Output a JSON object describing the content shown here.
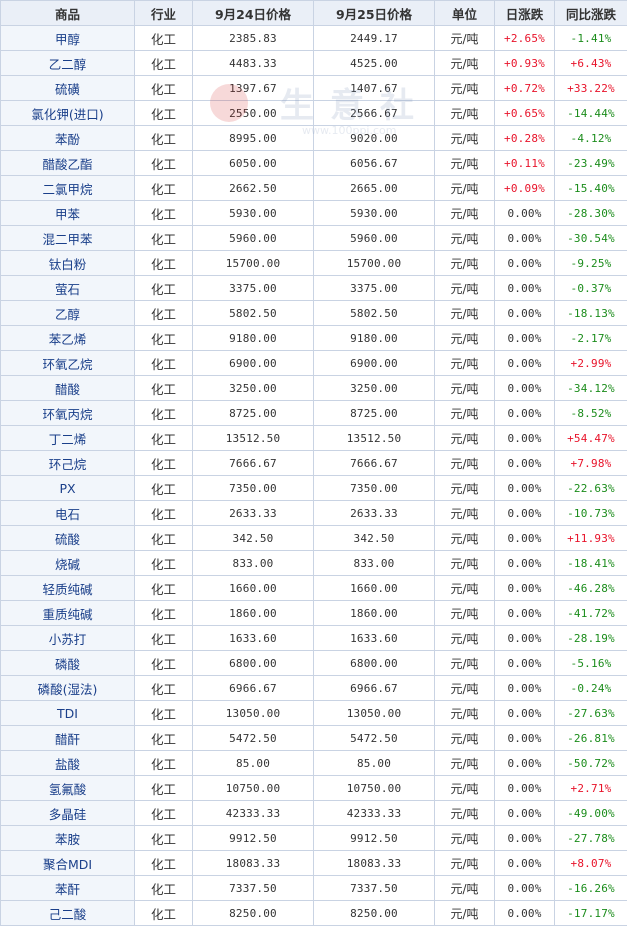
{
  "table": {
    "headers": [
      "商品",
      "行业",
      "9月24日价格",
      "9月25日价格",
      "单位",
      "日涨跌",
      "同比涨跌"
    ],
    "colors": {
      "up": "#e8132a",
      "down": "#1b8c1b",
      "neutral": "#333333"
    },
    "rows": [
      {
        "name": "甲醇",
        "industry": "化工",
        "p24": "2385.83",
        "p25": "2449.17",
        "unit": "元/吨",
        "day": "+2.65%",
        "yoy": "-1.41%"
      },
      {
        "name": "乙二醇",
        "industry": "化工",
        "p24": "4483.33",
        "p25": "4525.00",
        "unit": "元/吨",
        "day": "+0.93%",
        "yoy": "+6.43%"
      },
      {
        "name": "硫磺",
        "industry": "化工",
        "p24": "1397.67",
        "p25": "1407.67",
        "unit": "元/吨",
        "day": "+0.72%",
        "yoy": "+33.22%"
      },
      {
        "name": "氯化钾(进口)",
        "industry": "化工",
        "p24": "2550.00",
        "p25": "2566.67",
        "unit": "元/吨",
        "day": "+0.65%",
        "yoy": "-14.44%"
      },
      {
        "name": "苯酚",
        "industry": "化工",
        "p24": "8995.00",
        "p25": "9020.00",
        "unit": "元/吨",
        "day": "+0.28%",
        "yoy": "-4.12%"
      },
      {
        "name": "醋酸乙酯",
        "industry": "化工",
        "p24": "6050.00",
        "p25": "6056.67",
        "unit": "元/吨",
        "day": "+0.11%",
        "yoy": "-23.49%"
      },
      {
        "name": "二氯甲烷",
        "industry": "化工",
        "p24": "2662.50",
        "p25": "2665.00",
        "unit": "元/吨",
        "day": "+0.09%",
        "yoy": "-15.40%"
      },
      {
        "name": "甲苯",
        "industry": "化工",
        "p24": "5930.00",
        "p25": "5930.00",
        "unit": "元/吨",
        "day": "0.00%",
        "yoy": "-28.30%"
      },
      {
        "name": "混二甲苯",
        "industry": "化工",
        "p24": "5960.00",
        "p25": "5960.00",
        "unit": "元/吨",
        "day": "0.00%",
        "yoy": "-30.54%"
      },
      {
        "name": "钛白粉",
        "industry": "化工",
        "p24": "15700.00",
        "p25": "15700.00",
        "unit": "元/吨",
        "day": "0.00%",
        "yoy": "-9.25%"
      },
      {
        "name": "萤石",
        "industry": "化工",
        "p24": "3375.00",
        "p25": "3375.00",
        "unit": "元/吨",
        "day": "0.00%",
        "yoy": "-0.37%"
      },
      {
        "name": "乙醇",
        "industry": "化工",
        "p24": "5802.50",
        "p25": "5802.50",
        "unit": "元/吨",
        "day": "0.00%",
        "yoy": "-18.13%"
      },
      {
        "name": "苯乙烯",
        "industry": "化工",
        "p24": "9180.00",
        "p25": "9180.00",
        "unit": "元/吨",
        "day": "0.00%",
        "yoy": "-2.17%"
      },
      {
        "name": "环氧乙烷",
        "industry": "化工",
        "p24": "6900.00",
        "p25": "6900.00",
        "unit": "元/吨",
        "day": "0.00%",
        "yoy": "+2.99%"
      },
      {
        "name": "醋酸",
        "industry": "化工",
        "p24": "3250.00",
        "p25": "3250.00",
        "unit": "元/吨",
        "day": "0.00%",
        "yoy": "-34.12%"
      },
      {
        "name": "环氧丙烷",
        "industry": "化工",
        "p24": "8725.00",
        "p25": "8725.00",
        "unit": "元/吨",
        "day": "0.00%",
        "yoy": "-8.52%"
      },
      {
        "name": "丁二烯",
        "industry": "化工",
        "p24": "13512.50",
        "p25": "13512.50",
        "unit": "元/吨",
        "day": "0.00%",
        "yoy": "+54.47%"
      },
      {
        "name": "环己烷",
        "industry": "化工",
        "p24": "7666.67",
        "p25": "7666.67",
        "unit": "元/吨",
        "day": "0.00%",
        "yoy": "+7.98%"
      },
      {
        "name": "PX",
        "industry": "化工",
        "p24": "7350.00",
        "p25": "7350.00",
        "unit": "元/吨",
        "day": "0.00%",
        "yoy": "-22.63%"
      },
      {
        "name": "电石",
        "industry": "化工",
        "p24": "2633.33",
        "p25": "2633.33",
        "unit": "元/吨",
        "day": "0.00%",
        "yoy": "-10.73%"
      },
      {
        "name": "硫酸",
        "industry": "化工",
        "p24": "342.50",
        "p25": "342.50",
        "unit": "元/吨",
        "day": "0.00%",
        "yoy": "+11.93%"
      },
      {
        "name": "烧碱",
        "industry": "化工",
        "p24": "833.00",
        "p25": "833.00",
        "unit": "元/吨",
        "day": "0.00%",
        "yoy": "-18.41%"
      },
      {
        "name": "轻质纯碱",
        "industry": "化工",
        "p24": "1660.00",
        "p25": "1660.00",
        "unit": "元/吨",
        "day": "0.00%",
        "yoy": "-46.28%"
      },
      {
        "name": "重质纯碱",
        "industry": "化工",
        "p24": "1860.00",
        "p25": "1860.00",
        "unit": "元/吨",
        "day": "0.00%",
        "yoy": "-41.72%"
      },
      {
        "name": "小苏打",
        "industry": "化工",
        "p24": "1633.60",
        "p25": "1633.60",
        "unit": "元/吨",
        "day": "0.00%",
        "yoy": "-28.19%"
      },
      {
        "name": "磷酸",
        "industry": "化工",
        "p24": "6800.00",
        "p25": "6800.00",
        "unit": "元/吨",
        "day": "0.00%",
        "yoy": "-5.16%"
      },
      {
        "name": "磷酸(湿法)",
        "industry": "化工",
        "p24": "6966.67",
        "p25": "6966.67",
        "unit": "元/吨",
        "day": "0.00%",
        "yoy": "-0.24%"
      },
      {
        "name": "TDI",
        "industry": "化工",
        "p24": "13050.00",
        "p25": "13050.00",
        "unit": "元/吨",
        "day": "0.00%",
        "yoy": "-27.63%"
      },
      {
        "name": "醋酐",
        "industry": "化工",
        "p24": "5472.50",
        "p25": "5472.50",
        "unit": "元/吨",
        "day": "0.00%",
        "yoy": "-26.81%"
      },
      {
        "name": "盐酸",
        "industry": "化工",
        "p24": "85.00",
        "p25": "85.00",
        "unit": "元/吨",
        "day": "0.00%",
        "yoy": "-50.72%"
      },
      {
        "name": "氢氟酸",
        "industry": "化工",
        "p24": "10750.00",
        "p25": "10750.00",
        "unit": "元/吨",
        "day": "0.00%",
        "yoy": "+2.71%"
      },
      {
        "name": "多晶硅",
        "industry": "化工",
        "p24": "42333.33",
        "p25": "42333.33",
        "unit": "元/吨",
        "day": "0.00%",
        "yoy": "-49.00%"
      },
      {
        "name": "苯胺",
        "industry": "化工",
        "p24": "9912.50",
        "p25": "9912.50",
        "unit": "元/吨",
        "day": "0.00%",
        "yoy": "-27.78%"
      },
      {
        "name": "聚合MDI",
        "industry": "化工",
        "p24": "18083.33",
        "p25": "18083.33",
        "unit": "元/吨",
        "day": "0.00%",
        "yoy": "+8.07%"
      },
      {
        "name": "苯酐",
        "industry": "化工",
        "p24": "7337.50",
        "p25": "7337.50",
        "unit": "元/吨",
        "day": "0.00%",
        "yoy": "-16.26%"
      },
      {
        "name": "己二酸",
        "industry": "化工",
        "p24": "8250.00",
        "p25": "8250.00",
        "unit": "元/吨",
        "day": "0.00%",
        "yoy": "-17.17%"
      }
    ]
  },
  "watermark": {
    "text": "生意社",
    "url": "www.100ppi.com"
  }
}
